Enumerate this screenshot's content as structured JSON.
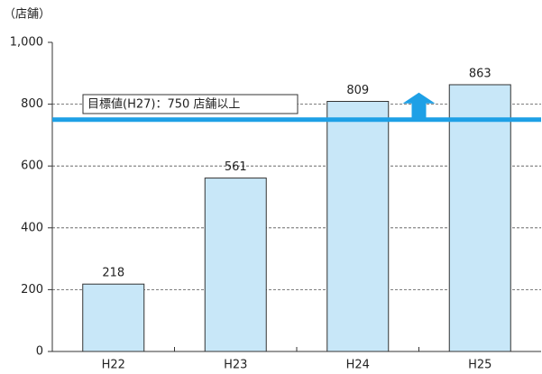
{
  "chart_data": {
    "type": "bar",
    "y_axis_label": "（店舗）",
    "categories": [
      "H22",
      "H23",
      "H24",
      "H25"
    ],
    "values": [
      218,
      561,
      809,
      863
    ],
    "color": "#c8e7f8",
    "ylim": [
      0,
      1000
    ],
    "yticks": [
      0,
      200,
      400,
      600,
      800,
      {
        "value": 1000,
        "label": "1,000"
      }
    ],
    "grid": true,
    "target": {
      "value": 750,
      "label": "目標値(H27)：750 店舗以上",
      "color": "#1ea0e6"
    }
  }
}
